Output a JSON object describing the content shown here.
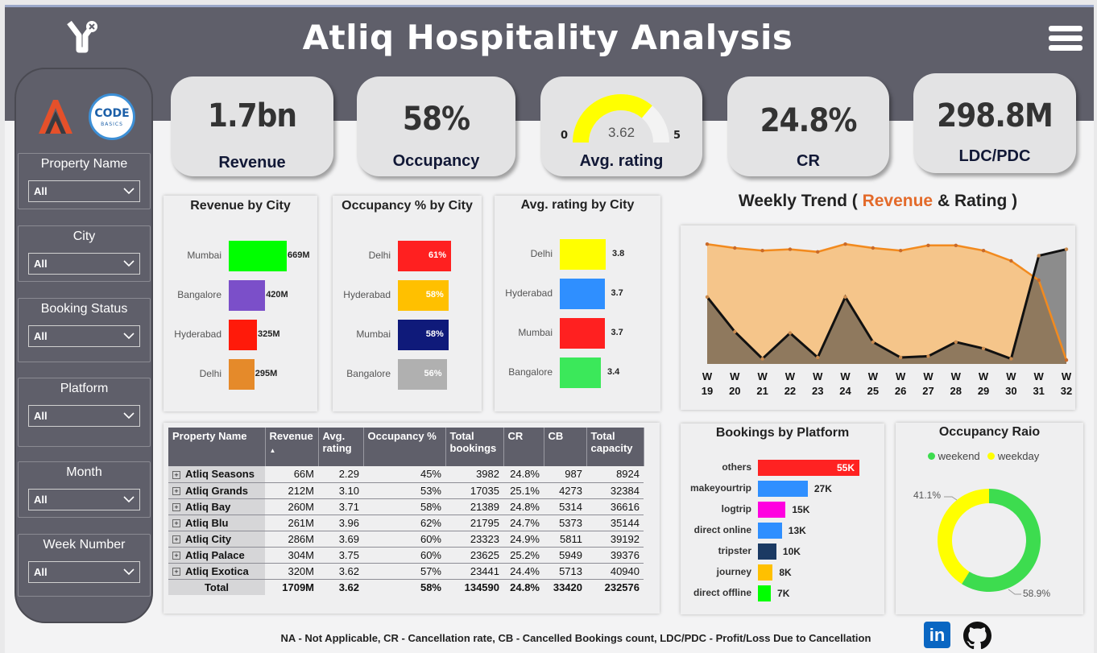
{
  "header": {
    "title": "Atliq Hospitality Analysis"
  },
  "slicers": [
    {
      "label": "Property Name",
      "value": "All"
    },
    {
      "label": "City",
      "value": "All"
    },
    {
      "label": "Booking Status",
      "value": "All"
    },
    {
      "label": "Platform",
      "value": "All"
    },
    {
      "label": "Month",
      "value": "All"
    },
    {
      "label": "Week Number",
      "value": "All"
    }
  ],
  "logos": {
    "codebasics_line1": "CODE",
    "codebasics_line2": "BASICS"
  },
  "kpis": {
    "revenue": {
      "value": "1.7bn",
      "label": "Revenue"
    },
    "occupancy": {
      "value": "58%",
      "label": "Occupancy"
    },
    "rating": {
      "value": "3.62",
      "label": "Avg. rating",
      "min": "0",
      "max": "5",
      "gauge_fraction": 0.724,
      "gauge_color": "#ffff00"
    },
    "cr": {
      "value": "24.8%",
      "label": "CR"
    },
    "ldc": {
      "value": "298.8M",
      "label": "LDC/PDC"
    }
  },
  "revenue_by_city": {
    "title": "Revenue by City",
    "rows": [
      {
        "city": "Mumbai",
        "label": "669M",
        "value": 669,
        "color": "#00ff00"
      },
      {
        "city": "Bangalore",
        "label": "420M",
        "value": 420,
        "color": "#7b4fc9"
      },
      {
        "city": "Hyderabad",
        "label": "325M",
        "value": 325,
        "color": "#ff1a0a"
      },
      {
        "city": "Delhi",
        "label": "295M",
        "value": 295,
        "color": "#e58a2a"
      }
    ]
  },
  "occupancy_by_city": {
    "title": "Occupancy % by City",
    "rows": [
      {
        "city": "Delhi",
        "label": "61%",
        "value": 61,
        "color": "#ff2020"
      },
      {
        "city": "Hyderabad",
        "label": "58%",
        "value": 58,
        "color": "#ffc000"
      },
      {
        "city": "Mumbai",
        "label": "58%",
        "value": 58,
        "color": "#0f1a7a"
      },
      {
        "city": "Bangalore",
        "label": "56%",
        "value": 56,
        "color": "#b0b0b0"
      }
    ]
  },
  "rating_by_city": {
    "title": "Avg. rating by City",
    "rows": [
      {
        "city": "Delhi",
        "label": "3.8",
        "value": 3.8,
        "color": "#ffff00"
      },
      {
        "city": "Hyderabad",
        "label": "3.7",
        "value": 3.7,
        "color": "#2f8fff"
      },
      {
        "city": "Mumbai",
        "label": "3.7",
        "value": 3.7,
        "color": "#ff2020"
      },
      {
        "city": "Bangalore",
        "label": "3.4",
        "value": 3.4,
        "color": "#3be85a"
      }
    ]
  },
  "weekly_trend": {
    "title_prefix": "Weekly Trend ( ",
    "title_revenue": "Revenue",
    "title_mid": " & ",
    "title_rating": "Rating",
    "title_suffix": " )",
    "weeks": [
      "19",
      "20",
      "21",
      "22",
      "23",
      "24",
      "25",
      "26",
      "27",
      "28",
      "29",
      "30",
      "31",
      "32"
    ],
    "week_prefix": "W",
    "revenue_color": "#f5c58a",
    "rating_color": "#8a6844"
  },
  "chart_data": [
    {
      "type": "area",
      "x": [
        "W 19",
        "W 20",
        "W 21",
        "W 22",
        "W 23",
        "W 24",
        "W 25",
        "W 26",
        "W 27",
        "W 28",
        "W 29",
        "W 30",
        "W 31",
        "W 32"
      ],
      "series": [
        {
          "name": "Revenue",
          "values": [
            0.93,
            0.9,
            0.88,
            0.89,
            0.87,
            0.93,
            0.9,
            0.88,
            0.92,
            0.92,
            0.88,
            0.8,
            0.65,
            0.03
          ]
        },
        {
          "name": "Rating",
          "values": [
            0.52,
            0.25,
            0.04,
            0.24,
            0.05,
            0.52,
            0.17,
            0.05,
            0.06,
            0.17,
            0.12,
            0.04,
            0.84,
            0.89
          ]
        }
      ],
      "ylim": [
        0,
        1
      ]
    },
    {
      "type": "bar",
      "title": "Bookings by Platform",
      "categories": [
        "others",
        "makeyourtrip",
        "logtrip",
        "direct online",
        "tripster",
        "journey",
        "direct offline"
      ],
      "values": [
        55000,
        27000,
        15000,
        13000,
        10000,
        8000,
        7000
      ]
    },
    {
      "type": "pie",
      "title": "Occupancy Raio",
      "categories": [
        "weekend",
        "weekday"
      ],
      "values": [
        58.9,
        41.1
      ]
    }
  ],
  "bookings_by_platform": {
    "title": "Bookings by Platform",
    "rows": [
      {
        "name": "others",
        "label": "55K",
        "color": "#ff2222"
      },
      {
        "name": "makeyourtrip",
        "label": "27K",
        "color": "#2f8fff"
      },
      {
        "name": "logtrip",
        "label": "15K",
        "color": "#ff00e0"
      },
      {
        "name": "direct online",
        "label": "13K",
        "color": "#2f8fff"
      },
      {
        "name": "tripster",
        "label": "10K",
        "color": "#1b3a63"
      },
      {
        "name": "journey",
        "label": "8K",
        "color": "#ffc000"
      },
      {
        "name": "direct offline",
        "label": "7K",
        "color": "#00ff00"
      }
    ]
  },
  "occupancy_ratio": {
    "title": "Occupancy Raio",
    "legend": [
      {
        "name": "weekend",
        "color": "#3ddc4f"
      },
      {
        "name": "weekday",
        "color": "#ffff00"
      }
    ],
    "label_weekday": "41.1%",
    "label_weekend": "58.9%"
  },
  "table": {
    "headers": [
      "Property Name",
      "Revenue",
      "Avg. rating",
      "Occupancy %",
      "Total bookings",
      "CR",
      "CB",
      "Total capacity"
    ],
    "rows": [
      [
        "Atliq Seasons",
        "66M",
        "2.29",
        "45%",
        "3982",
        "24.8%",
        "987",
        "8924"
      ],
      [
        "Atliq Grands",
        "212M",
        "3.10",
        "53%",
        "17035",
        "25.1%",
        "4273",
        "32384"
      ],
      [
        "Atliq Bay",
        "260M",
        "3.71",
        "58%",
        "21389",
        "24.8%",
        "5314",
        "36616"
      ],
      [
        "Atliq Blu",
        "261M",
        "3.96",
        "62%",
        "21795",
        "24.7%",
        "5373",
        "35144"
      ],
      [
        "Atliq City",
        "286M",
        "3.69",
        "60%",
        "23323",
        "24.9%",
        "5811",
        "39192"
      ],
      [
        "Atliq Palace",
        "304M",
        "3.75",
        "60%",
        "23625",
        "25.2%",
        "5949",
        "39376"
      ],
      [
        "Atliq Exotica",
        "320M",
        "3.62",
        "57%",
        "23441",
        "24.4%",
        "5713",
        "40940"
      ]
    ],
    "total": [
      "Total",
      "1709M",
      "3.62",
      "58%",
      "134590",
      "24.8%",
      "33420",
      "232576"
    ]
  },
  "footer": {
    "text": "NA - Not Applicable, CR - Cancellation rate, CB - Cancelled Bookings count, LDC/PDC - Profit/Loss Due to Cancellation",
    "linkedin": "in"
  }
}
